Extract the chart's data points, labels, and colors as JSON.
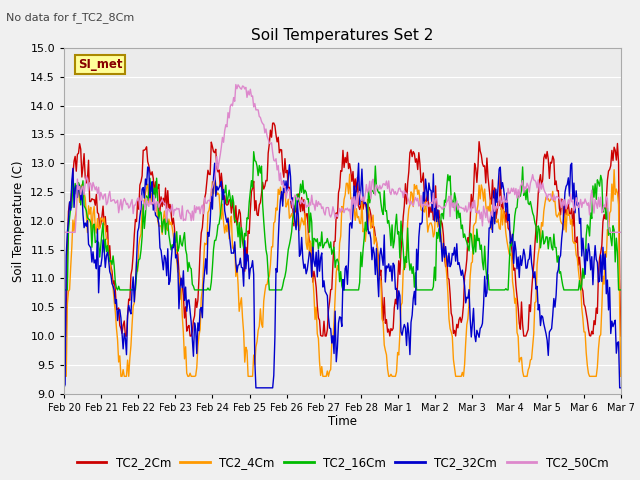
{
  "title": "Soil Temperatures Set 2",
  "subtitle": "No data for f_TC2_8Cm",
  "xlabel": "Time",
  "ylabel": "Soil Temperature (C)",
  "ylim": [
    9.0,
    15.0
  ],
  "yticks": [
    9.0,
    9.5,
    10.0,
    10.5,
    11.0,
    11.5,
    12.0,
    12.5,
    13.0,
    13.5,
    14.0,
    14.5,
    15.0
  ],
  "xtick_labels": [
    "Feb 20",
    "Feb 21",
    "Feb 22",
    "Feb 23",
    "Feb 24",
    "Feb 25",
    "Feb 26",
    "Feb 27",
    "Feb 28",
    "Mar 1",
    "Mar 2",
    "Mar 3",
    "Mar 4",
    "Mar 5",
    "Mar 6",
    "Mar 7"
  ],
  "colors": {
    "TC2_2Cm": "#cc0000",
    "TC2_4Cm": "#ff9900",
    "TC2_16Cm": "#00bb00",
    "TC2_32Cm": "#0000cc",
    "TC2_50Cm": "#dd88cc"
  },
  "legend_label": "SI_met",
  "legend_box_facecolor": "#ffff99",
  "legend_box_edgecolor": "#aa8800",
  "fig_facecolor": "#f0f0f0",
  "plot_facecolor": "#ebebeb",
  "grid_color": "#ffffff",
  "n_points": 500
}
